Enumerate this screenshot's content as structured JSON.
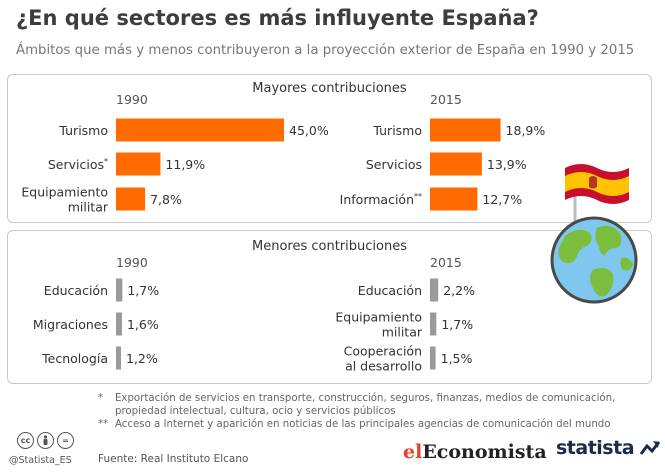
{
  "title": "¿En qué sectores es más influyente España?",
  "subtitle": "Ámbitos que más y menos contribuyeron a la proyección exterior de España en 1990 y 2015",
  "colors": {
    "major": "#ff6b00",
    "minor": "#9a9a9a",
    "text": "#333333"
  },
  "chart_data": [
    {
      "type": "bar",
      "orientation": "horizontal",
      "title": "Mayores contribuciones",
      "period": "1990",
      "categories": [
        "Turismo",
        "Servicios*",
        "Equipamiento militar"
      ],
      "values": [
        45.0,
        11.9,
        7.8
      ],
      "value_labels": [
        "45,0%",
        "11,9%",
        "7,8%"
      ],
      "xlim": [
        0,
        45
      ]
    },
    {
      "type": "bar",
      "orientation": "horizontal",
      "title": "Mayores contribuciones",
      "period": "2015",
      "categories": [
        "Turismo",
        "Servicios",
        "Información**"
      ],
      "values": [
        18.9,
        13.9,
        12.7
      ],
      "value_labels": [
        "18,9%",
        "13,9%",
        "12,7%"
      ],
      "xlim": [
        0,
        45
      ]
    },
    {
      "type": "bar",
      "orientation": "horizontal",
      "title": "Menores contribuciones",
      "period": "1990",
      "categories": [
        "Educación",
        "Migraciones",
        "Tecnología"
      ],
      "values": [
        1.7,
        1.6,
        1.2
      ],
      "value_labels": [
        "1,7%",
        "1,6%",
        "1,2%"
      ],
      "xlim": [
        0,
        45
      ]
    },
    {
      "type": "bar",
      "orientation": "horizontal",
      "title": "Menores contribuciones",
      "period": "2015",
      "categories": [
        "Educación",
        "Equipamiento militar",
        "Cooperación al desarrollo"
      ],
      "values": [
        2.2,
        1.7,
        1.5
      ],
      "value_labels": [
        "2,2%",
        "1,7%",
        "1,5%"
      ],
      "xlim": [
        0,
        45
      ]
    }
  ],
  "panels": {
    "major_title": "Mayores contribuciones",
    "minor_title": "Menores contribuciones"
  },
  "notes": [
    {
      "mark": "*",
      "text": "Exportación de servicios en transporte, construcción, seguros, finanzas, medios de comunicación, propiedad intelectual, cultura, ocio y servicios públicos"
    },
    {
      "mark": "**",
      "text": "Acceso a Internet y aparición en noticias de las principales agencias de comunicación del mundo"
    }
  ],
  "footer": {
    "handle": "@Statista_ES",
    "source": "Fuente: Real Instituto Elcano",
    "cc_icons": [
      "cc-icon",
      "by-icon",
      "nd-icon"
    ],
    "logo_el": "el",
    "logo_economista": "Economista",
    "logo_statista": "statista"
  },
  "illustration": {
    "icons": [
      "globe-icon",
      "spain-flag-icon"
    ]
  }
}
